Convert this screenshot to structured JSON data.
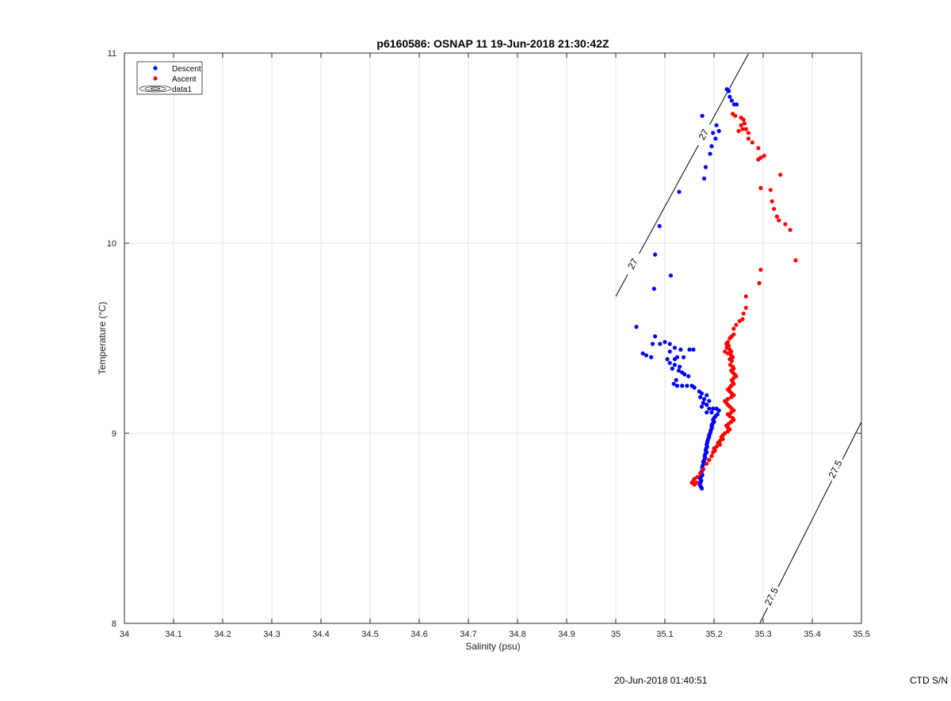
{
  "chart_data": {
    "type": "scatter",
    "title": "p6160586: OSNAP 11 19-Jun-2018 21:30:42Z",
    "xlabel": "Salinity (psu)",
    "ylabel": "Temperature (°C)",
    "xlim": [
      34,
      35.5
    ],
    "ylim": [
      8,
      11
    ],
    "x_ticks": [
      "34",
      "34.1",
      "34.2",
      "34.3",
      "34.4",
      "34.5",
      "34.6",
      "34.7",
      "34.8",
      "34.9",
      "35",
      "35.1",
      "35.2",
      "35.3",
      "35.4",
      "35.5"
    ],
    "y_ticks": [
      "8",
      "9",
      "10",
      "11"
    ],
    "grid": true,
    "legend_position": "top-left",
    "legend": [
      {
        "label": "Descent",
        "marker": "dot",
        "color": "#0000ff"
      },
      {
        "label": "Ascent",
        "marker": "dot",
        "color": "#ff0000"
      },
      {
        "label": "data1",
        "marker": "contour",
        "color": "#000000"
      }
    ],
    "series": [
      {
        "name": "Descent",
        "color": "#0000ff",
        "points": [
          [
            35.226,
            10.81
          ],
          [
            35.23,
            10.8
          ],
          [
            35.232,
            10.77
          ],
          [
            35.236,
            10.75
          ],
          [
            35.241,
            10.73
          ],
          [
            35.246,
            10.73
          ],
          [
            35.176,
            10.67
          ],
          [
            35.205,
            10.62
          ],
          [
            35.198,
            10.58
          ],
          [
            35.21,
            10.59
          ],
          [
            35.203,
            10.55
          ],
          [
            35.195,
            10.51
          ],
          [
            35.192,
            10.47
          ],
          [
            35.183,
            10.4
          ],
          [
            35.18,
            10.34
          ],
          [
            35.129,
            10.27
          ],
          [
            35.089,
            10.09
          ],
          [
            35.08,
            9.94
          ],
          [
            35.112,
            9.83
          ],
          [
            35.078,
            9.76
          ],
          [
            35.042,
            9.56
          ],
          [
            35.08,
            9.51
          ],
          [
            35.1,
            9.48
          ],
          [
            35.075,
            9.47
          ],
          [
            35.09,
            9.47
          ],
          [
            35.11,
            9.47
          ],
          [
            35.12,
            9.45
          ],
          [
            35.15,
            9.44
          ],
          [
            35.158,
            9.44
          ],
          [
            35.132,
            9.44
          ],
          [
            35.11,
            9.43
          ],
          [
            35.055,
            9.42
          ],
          [
            35.062,
            9.41
          ],
          [
            35.072,
            9.4
          ],
          [
            35.125,
            9.4
          ],
          [
            35.138,
            9.4
          ],
          [
            35.12,
            9.39
          ],
          [
            35.105,
            9.39
          ],
          [
            35.11,
            9.37
          ],
          [
            35.12,
            9.36
          ],
          [
            35.13,
            9.35
          ],
          [
            35.115,
            9.34
          ],
          [
            35.128,
            9.33
          ],
          [
            35.135,
            9.32
          ],
          [
            35.14,
            9.31
          ],
          [
            35.148,
            9.3
          ],
          [
            35.123,
            9.28
          ],
          [
            35.118,
            9.26
          ],
          [
            35.125,
            9.25
          ],
          [
            35.135,
            9.25
          ],
          [
            35.145,
            9.25
          ],
          [
            35.155,
            9.25
          ],
          [
            35.16,
            9.24
          ],
          [
            35.17,
            9.22
          ],
          [
            35.175,
            9.21
          ],
          [
            35.185,
            9.2
          ],
          [
            35.172,
            9.19
          ],
          [
            35.18,
            9.18
          ],
          [
            35.19,
            9.17
          ],
          [
            35.178,
            9.16
          ],
          [
            35.185,
            9.15
          ],
          [
            35.175,
            9.14
          ],
          [
            35.19,
            9.13
          ],
          [
            35.198,
            9.13
          ],
          [
            35.205,
            9.13
          ],
          [
            35.21,
            9.12
          ],
          [
            35.195,
            9.11
          ],
          [
            35.185,
            9.11
          ],
          [
            35.207,
            9.1
          ],
          [
            35.203,
            9.09
          ],
          [
            35.2,
            9.08
          ],
          [
            35.198,
            9.07
          ],
          [
            35.2,
            9.06
          ],
          [
            35.197,
            9.05
          ],
          [
            35.195,
            9.04
          ],
          [
            35.196,
            9.03
          ],
          [
            35.194,
            9.02
          ],
          [
            35.193,
            9.01
          ],
          [
            35.192,
            9.0
          ],
          [
            35.19,
            8.99
          ],
          [
            35.19,
            8.98
          ],
          [
            35.188,
            8.97
          ],
          [
            35.187,
            8.96
          ],
          [
            35.186,
            8.95
          ],
          [
            35.185,
            8.94
          ],
          [
            35.186,
            8.93
          ],
          [
            35.184,
            8.92
          ],
          [
            35.183,
            8.91
          ],
          [
            35.185,
            8.9
          ],
          [
            35.182,
            8.89
          ],
          [
            35.181,
            8.88
          ],
          [
            35.182,
            8.87
          ],
          [
            35.18,
            8.86
          ],
          [
            35.178,
            8.85
          ],
          [
            35.179,
            8.84
          ],
          [
            35.177,
            8.83
          ],
          [
            35.176,
            8.82
          ],
          [
            35.178,
            8.81
          ],
          [
            35.175,
            8.8
          ],
          [
            35.174,
            8.79
          ],
          [
            35.176,
            8.78
          ],
          [
            35.173,
            8.77
          ],
          [
            35.172,
            8.76
          ],
          [
            35.174,
            8.75
          ],
          [
            35.172,
            8.74
          ],
          [
            35.171,
            8.73
          ],
          [
            35.173,
            8.72
          ],
          [
            35.175,
            8.71
          ]
        ]
      },
      {
        "name": "Ascent",
        "color": "#ff0000",
        "points": [
          [
            35.238,
            10.68
          ],
          [
            35.243,
            10.67
          ],
          [
            35.255,
            10.66
          ],
          [
            35.26,
            10.65
          ],
          [
            35.262,
            10.63
          ],
          [
            35.255,
            10.62
          ],
          [
            35.258,
            10.6
          ],
          [
            35.265,
            10.6
          ],
          [
            35.25,
            10.59
          ],
          [
            35.27,
            10.58
          ],
          [
            35.27,
            10.55
          ],
          [
            35.278,
            10.53
          ],
          [
            35.29,
            10.5
          ],
          [
            35.302,
            10.46
          ],
          [
            35.295,
            10.45
          ],
          [
            35.29,
            10.44
          ],
          [
            35.335,
            10.36
          ],
          [
            35.315,
            10.28
          ],
          [
            35.295,
            10.29
          ],
          [
            35.318,
            10.22
          ],
          [
            35.322,
            10.18
          ],
          [
            35.328,
            10.14
          ],
          [
            35.332,
            10.12
          ],
          [
            35.345,
            10.1
          ],
          [
            35.355,
            10.07
          ],
          [
            35.366,
            9.91
          ],
          [
            35.295,
            9.86
          ],
          [
            35.292,
            9.79
          ],
          [
            35.265,
            9.72
          ],
          [
            35.265,
            9.66
          ],
          [
            35.26,
            9.63
          ],
          [
            35.258,
            9.6
          ],
          [
            35.252,
            9.59
          ],
          [
            35.245,
            9.57
          ],
          [
            35.24,
            9.55
          ],
          [
            35.24,
            9.52
          ],
          [
            35.236,
            9.51
          ],
          [
            35.232,
            9.5
          ],
          [
            35.228,
            9.48
          ],
          [
            35.225,
            9.47
          ],
          [
            35.23,
            9.46
          ],
          [
            35.226,
            9.45
          ],
          [
            35.232,
            9.44
          ],
          [
            35.235,
            9.43
          ],
          [
            35.222,
            9.43
          ],
          [
            35.228,
            9.42
          ],
          [
            35.235,
            9.41
          ],
          [
            35.238,
            9.4
          ],
          [
            35.232,
            9.39
          ],
          [
            35.236,
            9.38
          ],
          [
            35.233,
            9.36
          ],
          [
            35.238,
            9.35
          ],
          [
            35.24,
            9.34
          ],
          [
            35.235,
            9.33
          ],
          [
            35.238,
            9.32
          ],
          [
            35.242,
            9.31
          ],
          [
            35.245,
            9.3
          ],
          [
            35.24,
            9.29
          ],
          [
            35.236,
            9.28
          ],
          [
            35.238,
            9.27
          ],
          [
            35.24,
            9.26
          ],
          [
            35.235,
            9.25
          ],
          [
            35.232,
            9.24
          ],
          [
            35.228,
            9.23
          ],
          [
            35.232,
            9.22
          ],
          [
            35.236,
            9.21
          ],
          [
            35.24,
            9.2
          ],
          [
            35.235,
            9.19
          ],
          [
            35.228,
            9.18
          ],
          [
            35.222,
            9.17
          ],
          [
            35.225,
            9.16
          ],
          [
            35.228,
            9.15
          ],
          [
            35.232,
            9.14
          ],
          [
            35.236,
            9.13
          ],
          [
            35.24,
            9.12
          ],
          [
            35.235,
            9.11
          ],
          [
            35.228,
            9.1
          ],
          [
            35.232,
            9.09
          ],
          [
            35.238,
            9.08
          ],
          [
            35.24,
            9.07
          ],
          [
            35.235,
            9.06
          ],
          [
            35.23,
            9.05
          ],
          [
            35.225,
            9.04
          ],
          [
            35.228,
            9.03
          ],
          [
            35.232,
            9.02
          ],
          [
            35.228,
            9.01
          ],
          [
            35.222,
            9.0
          ],
          [
            35.218,
            8.99
          ],
          [
            35.215,
            8.98
          ],
          [
            35.218,
            8.97
          ],
          [
            35.212,
            8.96
          ],
          [
            35.208,
            8.95
          ],
          [
            35.212,
            8.94
          ],
          [
            35.205,
            8.93
          ],
          [
            35.2,
            8.92
          ],
          [
            35.202,
            8.91
          ],
          [
            35.198,
            8.9
          ],
          [
            35.195,
            8.88
          ],
          [
            35.19,
            8.86
          ],
          [
            35.185,
            8.84
          ],
          [
            35.178,
            8.81
          ],
          [
            35.172,
            8.79
          ],
          [
            35.166,
            8.77
          ],
          [
            35.16,
            8.76
          ],
          [
            35.158,
            8.75
          ],
          [
            35.165,
            8.74
          ],
          [
            35.16,
            8.73
          ],
          [
            35.155,
            8.74
          ]
        ]
      }
    ],
    "contours": [
      {
        "name": "data1",
        "label": "27",
        "points": [
          [
            35.0,
            9.72
          ],
          [
            35.27,
            10.997
          ]
        ],
        "label_positions": [
          [
            35.036,
            9.89
          ],
          [
            35.18,
            10.57
          ]
        ]
      },
      {
        "name": "data1",
        "label": "27.5",
        "points": [
          [
            35.293,
            8.0
          ],
          [
            35.5,
            9.06
          ]
        ],
        "label_positions": [
          [
            35.318,
            8.14
          ],
          [
            35.448,
            8.81
          ]
        ]
      }
    ],
    "footer": {
      "timestamp": "20-Jun-2018 01:40:51",
      "serial": "CTD S/N"
    }
  }
}
